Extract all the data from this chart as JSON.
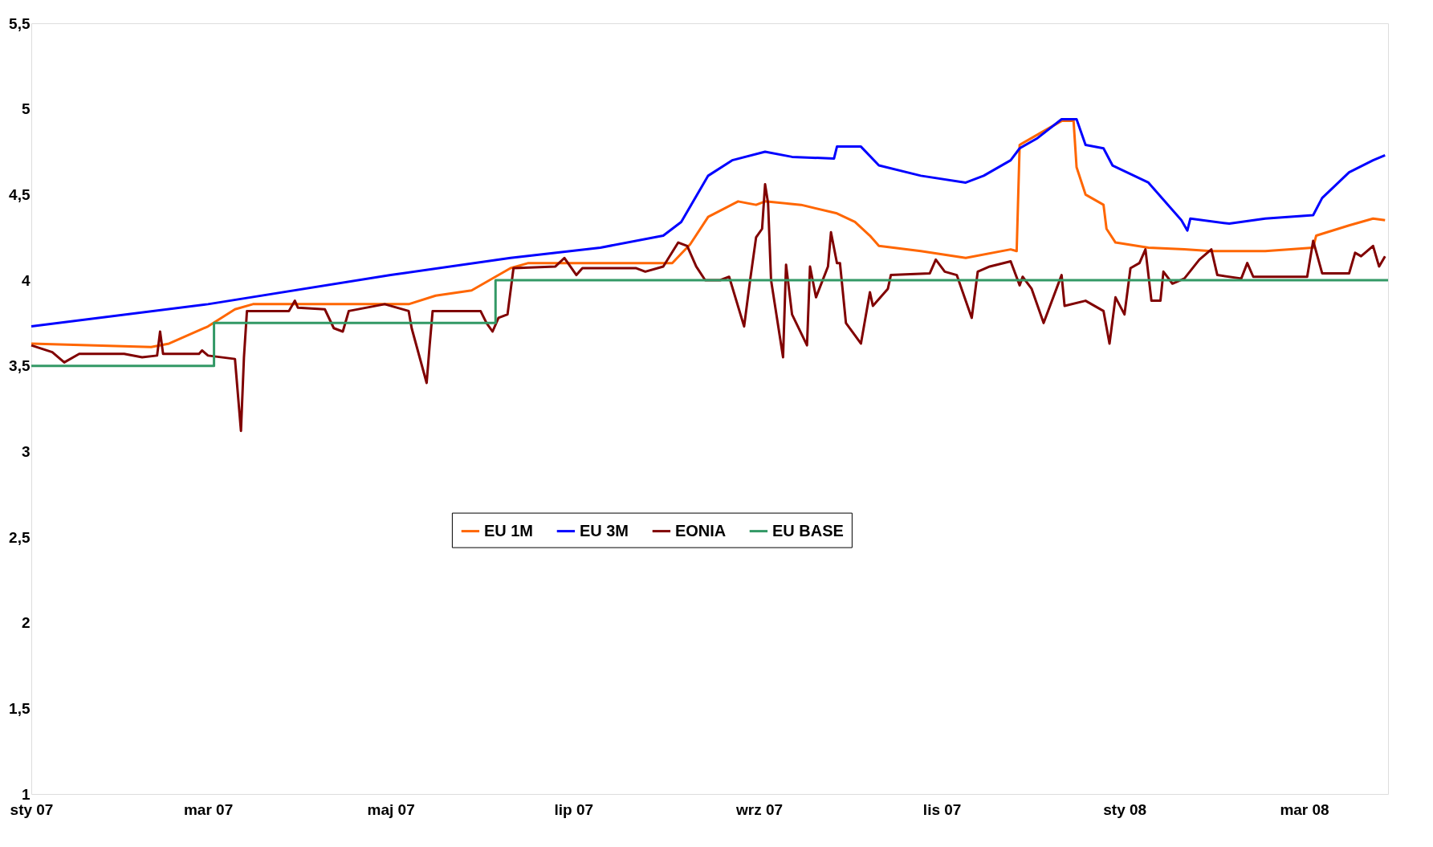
{
  "chart_data": {
    "type": "line",
    "xlim": [
      "2007-01-01",
      "2008-03-29"
    ],
    "xticks": [
      {
        "value": "2007-01-01",
        "label": "sty 07"
      },
      {
        "value": "2007-03-01",
        "label": "mar 07"
      },
      {
        "value": "2007-05-01",
        "label": "maj 07"
      },
      {
        "value": "2007-07-01",
        "label": "lip 07"
      },
      {
        "value": "2007-09-01",
        "label": "wrz 07"
      },
      {
        "value": "2007-11-01",
        "label": "lis 07"
      },
      {
        "value": "2008-01-01",
        "label": "sty 08"
      },
      {
        "value": "2008-03-01",
        "label": "mar 08"
      }
    ],
    "ylim": [
      1,
      5.5
    ],
    "yticks": [
      1,
      {
        "value": 1.5,
        "label": "1,5"
      },
      2,
      {
        "value": 2.5,
        "label": "2,5"
      },
      3,
      {
        "value": 3.5,
        "label": "3,5"
      },
      4,
      {
        "value": 4.5,
        "label": "4,5"
      },
      5,
      {
        "value": 5.5,
        "label": "5,5"
      }
    ],
    "grid": false,
    "legend": "bottom",
    "marker": "none",
    "line_style": "solid",
    "series": [
      {
        "name": "EU 1M",
        "color": "#ff6600",
        "x": [
          "2007-01-01",
          "2007-02-10",
          "2007-02-16",
          "2007-03-01",
          "2007-03-10",
          "2007-03-16",
          "2007-05-07",
          "2007-05-16",
          "2007-05-28",
          "2007-06-10",
          "2007-06-16",
          "2007-08-03",
          "2007-08-09",
          "2007-08-15",
          "2007-08-25",
          "2007-08-31",
          "2007-09-03",
          "2007-09-15",
          "2007-09-27",
          "2007-10-03",
          "2007-10-08",
          "2007-10-11",
          "2007-10-25",
          "2007-11-09",
          "2007-11-24",
          "2007-11-26",
          "2007-11-27",
          "2007-12-03",
          "2007-12-11",
          "2007-12-15",
          "2007-12-16",
          "2007-12-19",
          "2007-12-25",
          "2007-12-26",
          "2007-12-29",
          "2008-01-09",
          "2008-01-21",
          "2008-01-30",
          "2008-02-17",
          "2008-03-04",
          "2008-03-05",
          "2008-03-16",
          "2008-03-24",
          "2008-03-28"
        ],
        "values": [
          3.63,
          3.61,
          3.63,
          3.73,
          3.83,
          3.86,
          3.86,
          3.91,
          3.94,
          4.07,
          4.1,
          4.1,
          4.21,
          4.37,
          4.46,
          4.44,
          4.46,
          4.44,
          4.39,
          4.34,
          4.26,
          4.2,
          4.17,
          4.13,
          4.18,
          4.17,
          4.79,
          4.85,
          4.93,
          4.93,
          4.66,
          4.5,
          4.44,
          4.3,
          4.22,
          4.19,
          4.18,
          4.17,
          4.17,
          4.19,
          4.26,
          4.32,
          4.36,
          4.35
        ]
      },
      {
        "name": "EU 3M",
        "color": "#0000ff",
        "x": [
          "2007-01-01",
          "2007-03-01",
          "2007-05-01",
          "2007-06-10",
          "2007-07-10",
          "2007-07-31",
          "2007-08-06",
          "2007-08-15",
          "2007-08-23",
          "2007-09-03",
          "2007-09-12",
          "2007-09-26",
          "2007-09-27",
          "2007-10-05",
          "2007-10-11",
          "2007-10-25",
          "2007-11-09",
          "2007-11-15",
          "2007-11-24",
          "2007-11-27",
          "2007-12-03",
          "2007-12-11",
          "2007-12-16",
          "2007-12-19",
          "2007-12-25",
          "2007-12-28",
          "2008-01-09",
          "2008-01-15",
          "2008-01-20",
          "2008-01-22",
          "2008-01-23",
          "2008-02-05",
          "2008-02-17",
          "2008-03-04",
          "2008-03-07",
          "2008-03-16",
          "2008-03-24",
          "2008-03-28"
        ],
        "values": [
          3.73,
          3.86,
          4.03,
          4.13,
          4.19,
          4.26,
          4.34,
          4.61,
          4.7,
          4.75,
          4.72,
          4.71,
          4.78,
          4.78,
          4.67,
          4.61,
          4.57,
          4.61,
          4.7,
          4.77,
          4.83,
          4.94,
          4.94,
          4.79,
          4.77,
          4.67,
          4.57,
          4.45,
          4.35,
          4.29,
          4.36,
          4.33,
          4.36,
          4.38,
          4.48,
          4.63,
          4.7,
          4.73
        ]
      },
      {
        "name": "EONIA",
        "color": "#800000",
        "x": [
          "2007-01-01",
          "2007-01-08",
          "2007-01-12",
          "2007-01-17",
          "2007-02-01",
          "2007-02-07",
          "2007-02-12",
          "2007-02-13",
          "2007-02-14",
          "2007-02-26",
          "2007-02-27",
          "2007-03-01",
          "2007-03-10",
          "2007-03-12",
          "2007-03-13",
          "2007-03-14",
          "2007-03-28",
          "2007-03-30",
          "2007-03-31",
          "2007-04-09",
          "2007-04-12",
          "2007-04-15",
          "2007-04-17",
          "2007-04-29",
          "2007-05-07",
          "2007-05-08",
          "2007-05-13",
          "2007-05-14",
          "2007-05-15",
          "2007-05-31",
          "2007-06-02",
          "2007-06-04",
          "2007-06-06",
          "2007-06-09",
          "2007-06-11",
          "2007-06-25",
          "2007-06-28",
          "2007-07-02",
          "2007-07-04",
          "2007-07-22",
          "2007-07-25",
          "2007-07-31",
          "2007-08-05",
          "2007-08-08",
          "2007-08-11",
          "2007-08-14",
          "2007-08-19",
          "2007-08-22",
          "2007-08-27",
          "2007-08-29",
          "2007-08-31",
          "2007-09-02",
          "2007-09-03",
          "2007-09-04",
          "2007-09-05",
          "2007-09-09",
          "2007-09-10",
          "2007-09-12",
          "2007-09-17",
          "2007-09-18",
          "2007-09-20",
          "2007-09-24",
          "2007-09-25",
          "2007-09-27",
          "2007-09-28",
          "2007-09-30",
          "2007-10-05",
          "2007-10-08",
          "2007-10-09",
          "2007-10-14",
          "2007-10-15",
          "2007-10-28",
          "2007-10-30",
          "2007-11-02",
          "2007-11-06",
          "2007-11-11",
          "2007-11-13",
          "2007-11-17",
          "2007-11-24",
          "2007-11-27",
          "2007-11-28",
          "2007-12-01",
          "2007-12-05",
          "2007-12-11",
          "2007-12-12",
          "2007-12-19",
          "2007-12-25",
          "2007-12-27",
          "2007-12-29",
          "2008-01-01",
          "2008-01-03",
          "2008-01-06",
          "2008-01-08",
          "2008-01-10",
          "2008-01-13",
          "2008-01-14",
          "2008-01-17",
          "2008-01-21",
          "2008-01-26",
          "2008-01-30",
          "2008-02-01",
          "2008-02-09",
          "2008-02-11",
          "2008-02-13",
          "2008-03-02",
          "2008-03-04",
          "2008-03-07",
          "2008-03-16",
          "2008-03-18",
          "2008-03-20",
          "2008-03-24",
          "2008-03-26",
          "2008-03-28"
        ],
        "values": [
          3.62,
          3.58,
          3.52,
          3.57,
          3.57,
          3.55,
          3.56,
          3.7,
          3.57,
          3.57,
          3.59,
          3.56,
          3.54,
          3.12,
          3.55,
          3.82,
          3.82,
          3.88,
          3.84,
          3.83,
          3.72,
          3.7,
          3.82,
          3.86,
          3.82,
          3.72,
          3.4,
          3.62,
          3.82,
          3.82,
          3.75,
          3.7,
          3.78,
          3.8,
          4.07,
          4.08,
          4.13,
          4.03,
          4.07,
          4.07,
          4.05,
          4.08,
          4.22,
          4.2,
          4.08,
          4.0,
          4.0,
          4.02,
          3.73,
          4.0,
          4.25,
          4.3,
          4.56,
          4.45,
          4.0,
          3.55,
          4.09,
          3.8,
          3.62,
          4.08,
          3.9,
          4.08,
          4.28,
          4.1,
          4.1,
          3.75,
          3.63,
          3.93,
          3.85,
          3.95,
          4.03,
          4.04,
          4.12,
          4.05,
          4.03,
          3.78,
          4.05,
          4.08,
          4.11,
          3.97,
          4.02,
          3.95,
          3.75,
          4.03,
          3.85,
          3.88,
          3.82,
          3.63,
          3.9,
          3.8,
          4.07,
          4.1,
          4.18,
          3.88,
          3.88,
          4.05,
          3.98,
          4.01,
          4.12,
          4.18,
          4.03,
          4.01,
          4.1,
          4.02,
          4.02,
          4.23,
          4.04,
          4.04,
          4.16,
          4.14,
          4.2,
          4.08,
          4.14
        ]
      },
      {
        "name": "EU BASE",
        "color": "#339966",
        "type": "step",
        "x": [
          "2007-01-01",
          "2007-03-03",
          "2007-06-05",
          "2008-03-29"
        ],
        "values": [
          3.5,
          3.75,
          4.0,
          4.0
        ]
      }
    ]
  }
}
